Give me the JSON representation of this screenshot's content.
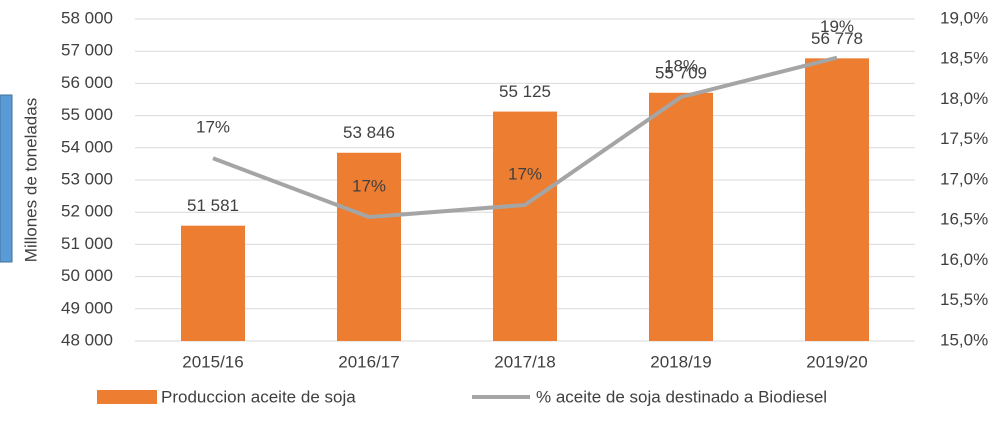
{
  "chart_data": {
    "type": "bar_line",
    "y_axis_label": "Millones de toneladas",
    "categories": [
      "2015/16",
      "2016/17",
      "2017/18",
      "2018/19",
      "2019/20"
    ],
    "series": [
      {
        "name": "Produccion aceite de soja",
        "color": "#ed7d31",
        "type": "bar",
        "values": [
          51581,
          53846,
          55125,
          55709,
          56778
        ],
        "value_labels": [
          "51 581",
          "53 846",
          "55 125",
          "55 709",
          "56 778"
        ]
      },
      {
        "name": "% aceite de soja destinado a Biodiesel",
        "color": "#a5a5a5",
        "type": "line",
        "axis": "y2",
        "values": [
          17.27,
          16.54,
          16.69,
          18.03,
          18.52
        ],
        "value_labels": [
          "17%",
          "17%",
          "17%",
          "18%",
          "19%"
        ]
      }
    ],
    "ylim": [
      48000,
      58000
    ],
    "yticks": [
      {
        "value": 48000,
        "label": "48 000"
      },
      {
        "value": 49000,
        "label": "49 000"
      },
      {
        "value": 50000,
        "label": "50 000"
      },
      {
        "value": 51000,
        "label": "51 000"
      },
      {
        "value": 52000,
        "label": "52 000"
      },
      {
        "value": 53000,
        "label": "53 000"
      },
      {
        "value": 54000,
        "label": "54 000"
      },
      {
        "value": 55000,
        "label": "55 000"
      },
      {
        "value": 56000,
        "label": "56 000"
      },
      {
        "value": 57000,
        "label": "57 000"
      },
      {
        "value": 58000,
        "label": "58 000"
      }
    ],
    "y2lim": [
      15,
      19
    ],
    "y2ticks": [
      {
        "value": 15,
        "label": "15,0%"
      },
      {
        "value": 15.5,
        "label": "15,5%"
      },
      {
        "value": 16,
        "label": "16,0%"
      },
      {
        "value": 16.5,
        "label": "16,5%"
      },
      {
        "value": 17,
        "label": "17,0%"
      },
      {
        "value": 17.5,
        "label": "17,5%"
      },
      {
        "value": 18,
        "label": "18,0%"
      },
      {
        "value": 18.5,
        "label": "18,5%"
      },
      {
        "value": 19,
        "label": "19,0%"
      }
    ],
    "grid": true
  }
}
